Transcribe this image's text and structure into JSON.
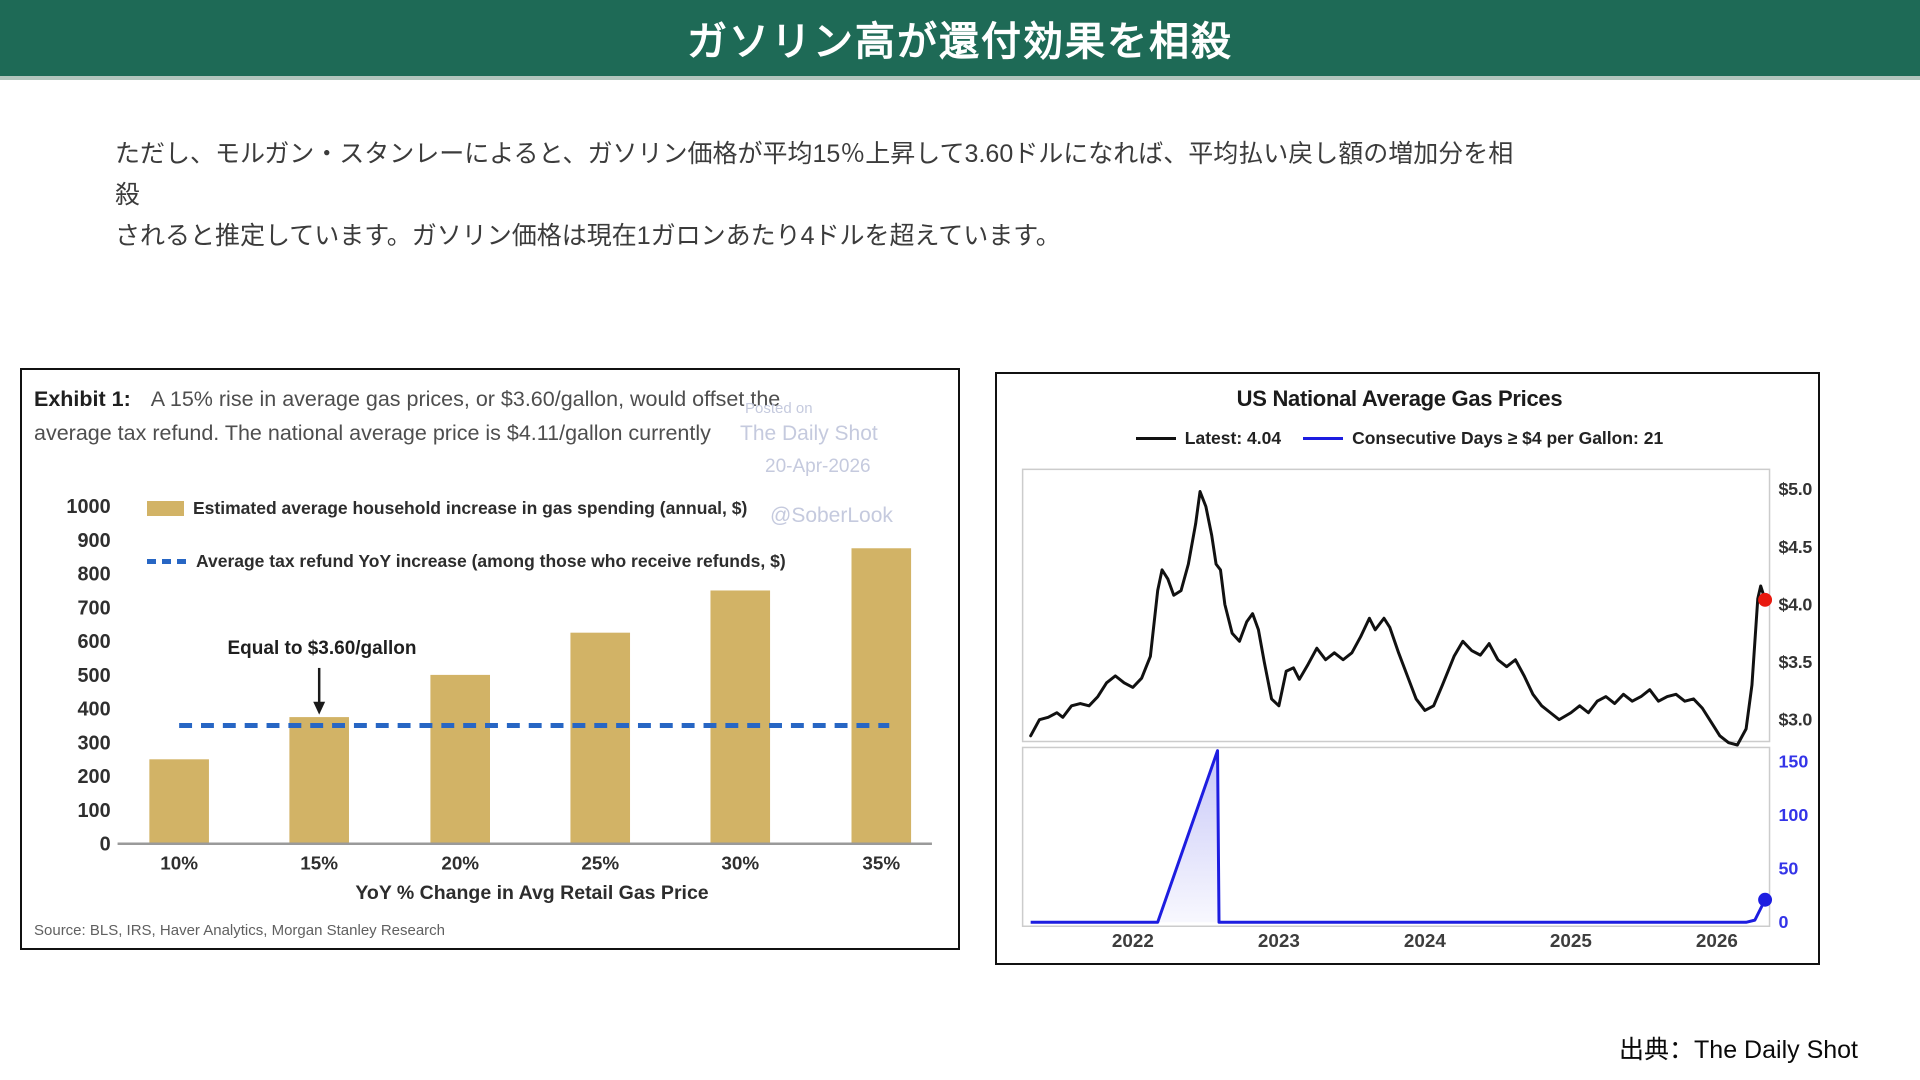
{
  "page": {
    "header_title": "ガソリン高が還付効果を相殺",
    "body_text_line1": "ただし、モルガン・スタンレーによると、ガソリン価格が平均15％上昇して3.60ドルになれば、平均払い戻し額の増加分を相殺",
    "body_text_line2": "されると推定しています。ガソリン価格は現在1ガロンあたり4ドルを超えています。",
    "attribution": "出典：The Daily Shot",
    "colors": {
      "header_bg": "#1e6a56",
      "bar": "#d2b366",
      "dash_blue": "#2766c4",
      "line_black": "#111111",
      "line_blue": "#1d1de0",
      "dot_red": "#e8190f",
      "axis_blue": "#3434e8",
      "watermark": "#c5cade"
    }
  },
  "watermark": {
    "line1": "Posted on",
    "line2": "The Daily Shot",
    "line3": "20-Apr-2026",
    "line4": "@SoberLook"
  },
  "left_chart": {
    "exhibit_label": "Exhibit 1:",
    "title_line1": "A 15% rise in average gas prices, or $3.60/gallon, would offset the",
    "title_line2": "average tax refund. The national average price is $4.11/gallon currently",
    "legend": [
      "Estimated average household increase in gas spending (annual, $)",
      "Average tax refund YoY increase (among those who receive refunds, $)"
    ],
    "annotation": "Equal to $3.60/gallon",
    "xlabel": "YoY % Change in Avg Retail Gas Price",
    "source": "Source: BLS, IRS, Haver Analytics, Morgan Stanley Research"
  },
  "right_chart": {
    "title": "US National Average Gas Prices",
    "legend_latest": "Latest: 4.04",
    "legend_days": "Consecutive Days ≥ $4 per Gallon: 21"
  },
  "chart_data": [
    {
      "id": "household_gas_spending",
      "type": "bar",
      "title": "Estimated average household increase in gas spending (annual, $) vs YoY % change in avg retail gas price",
      "categories": [
        "10%",
        "15%",
        "20%",
        "25%",
        "30%",
        "35%"
      ],
      "values": [
        250,
        375,
        500,
        625,
        750,
        875
      ],
      "refund_line_value": 350,
      "annotation_category": "15%",
      "annotation": "Equal to $3.60/gallon",
      "ylim": [
        0,
        1000
      ],
      "ytick_step": 100,
      "xlabel": "YoY % Change in Avg Retail Gas Price",
      "legend_position": "top"
    },
    {
      "id": "us_national_average_gas_prices",
      "type": "line",
      "title": "US National Average Gas Prices",
      "series_name": "Latest: 4.04",
      "latest": 4.04,
      "ylim": [
        2.78,
        5.17
      ],
      "yticks": [
        {
          "label": "$5.0",
          "value": 5.0
        },
        {
          "label": "$4.5",
          "value": 4.5
        },
        {
          "label": "$4.0",
          "value": 4.0
        },
        {
          "label": "$3.5",
          "value": 3.5
        },
        {
          "label": "$3.0",
          "value": 3.0
        }
      ],
      "points": [
        [
          2021.3,
          2.86
        ],
        [
          2021.36,
          3.0
        ],
        [
          2021.42,
          3.02
        ],
        [
          2021.48,
          3.06
        ],
        [
          2021.52,
          3.02
        ],
        [
          2021.58,
          3.12
        ],
        [
          2021.64,
          3.14
        ],
        [
          2021.7,
          3.12
        ],
        [
          2021.76,
          3.2
        ],
        [
          2021.82,
          3.32
        ],
        [
          2021.88,
          3.38
        ],
        [
          2021.94,
          3.32
        ],
        [
          2022.0,
          3.28
        ],
        [
          2022.06,
          3.36
        ],
        [
          2022.12,
          3.55
        ],
        [
          2022.17,
          4.12
        ],
        [
          2022.2,
          4.3
        ],
        [
          2022.24,
          4.22
        ],
        [
          2022.28,
          4.08
        ],
        [
          2022.33,
          4.12
        ],
        [
          2022.38,
          4.35
        ],
        [
          2022.43,
          4.7
        ],
        [
          2022.46,
          4.98
        ],
        [
          2022.5,
          4.85
        ],
        [
          2022.54,
          4.6
        ],
        [
          2022.57,
          4.35
        ],
        [
          2022.6,
          4.3
        ],
        [
          2022.63,
          4.0
        ],
        [
          2022.68,
          3.75
        ],
        [
          2022.73,
          3.68
        ],
        [
          2022.78,
          3.85
        ],
        [
          2022.82,
          3.92
        ],
        [
          2022.86,
          3.78
        ],
        [
          2022.9,
          3.5
        ],
        [
          2022.95,
          3.18
        ],
        [
          2023.0,
          3.12
        ],
        [
          2023.05,
          3.42
        ],
        [
          2023.1,
          3.45
        ],
        [
          2023.14,
          3.35
        ],
        [
          2023.2,
          3.48
        ],
        [
          2023.26,
          3.62
        ],
        [
          2023.32,
          3.52
        ],
        [
          2023.38,
          3.58
        ],
        [
          2023.44,
          3.52
        ],
        [
          2023.5,
          3.58
        ],
        [
          2023.56,
          3.72
        ],
        [
          2023.62,
          3.88
        ],
        [
          2023.66,
          3.78
        ],
        [
          2023.72,
          3.88
        ],
        [
          2023.76,
          3.8
        ],
        [
          2023.82,
          3.58
        ],
        [
          2023.88,
          3.38
        ],
        [
          2023.94,
          3.18
        ],
        [
          2024.0,
          3.08
        ],
        [
          2024.06,
          3.12
        ],
        [
          2024.12,
          3.3
        ],
        [
          2024.2,
          3.55
        ],
        [
          2024.26,
          3.68
        ],
        [
          2024.32,
          3.6
        ],
        [
          2024.38,
          3.56
        ],
        [
          2024.44,
          3.66
        ],
        [
          2024.5,
          3.52
        ],
        [
          2024.56,
          3.46
        ],
        [
          2024.62,
          3.52
        ],
        [
          2024.68,
          3.38
        ],
        [
          2024.74,
          3.22
        ],
        [
          2024.8,
          3.12
        ],
        [
          2024.86,
          3.06
        ],
        [
          2024.92,
          3.0
        ],
        [
          2025.0,
          3.06
        ],
        [
          2025.06,
          3.12
        ],
        [
          2025.12,
          3.06
        ],
        [
          2025.18,
          3.16
        ],
        [
          2025.24,
          3.2
        ],
        [
          2025.3,
          3.14
        ],
        [
          2025.36,
          3.22
        ],
        [
          2025.42,
          3.16
        ],
        [
          2025.48,
          3.2
        ],
        [
          2025.54,
          3.26
        ],
        [
          2025.6,
          3.16
        ],
        [
          2025.66,
          3.2
        ],
        [
          2025.72,
          3.22
        ],
        [
          2025.78,
          3.16
        ],
        [
          2025.84,
          3.18
        ],
        [
          2025.9,
          3.1
        ],
        [
          2025.96,
          2.98
        ],
        [
          2026.02,
          2.86
        ],
        [
          2026.08,
          2.8
        ],
        [
          2026.14,
          2.78
        ],
        [
          2026.2,
          2.92
        ],
        [
          2026.24,
          3.3
        ],
        [
          2026.28,
          4.05
        ],
        [
          2026.3,
          4.16
        ],
        [
          2026.33,
          4.04
        ]
      ],
      "x_ticks": [
        2022,
        2023,
        2024,
        2025,
        2026
      ]
    },
    {
      "id": "consecutive_days_over_4_dollars",
      "type": "area",
      "series_name": "Consecutive Days ≥ $4 per Gallon: 21",
      "latest": 21,
      "ylim": [
        0,
        165
      ],
      "yticks": [
        {
          "label": "150",
          "value": 150
        },
        {
          "label": "100",
          "value": 100
        },
        {
          "label": "50",
          "value": 50
        },
        {
          "label": "0",
          "value": 0
        }
      ],
      "points": [
        [
          2021.3,
          0
        ],
        [
          2022.17,
          0
        ],
        [
          2022.58,
          160
        ],
        [
          2022.59,
          0
        ],
        [
          2026.2,
          0
        ],
        [
          2026.26,
          2
        ],
        [
          2026.33,
          21
        ]
      ],
      "x_ticks": [
        2022,
        2023,
        2024,
        2025,
        2026
      ]
    }
  ]
}
